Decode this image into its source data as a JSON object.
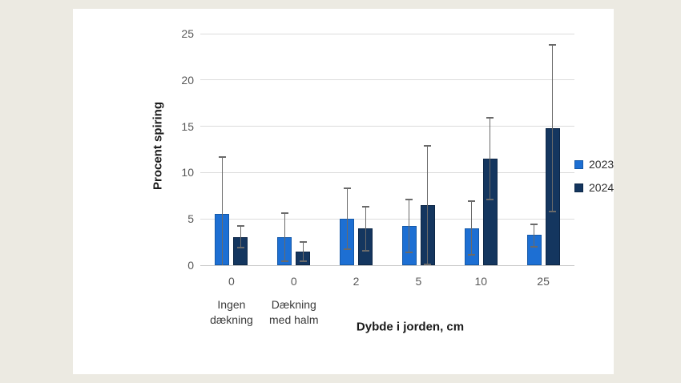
{
  "chart_data": {
    "type": "bar",
    "title": "",
    "xlabel": "Dybde i jorden, cm",
    "ylabel": "Procent spiring",
    "categories": [
      "0",
      "0",
      "2",
      "5",
      "10",
      "25"
    ],
    "category_notes": [
      {
        "index": 0,
        "lines": [
          "Ingen",
          "dækning"
        ]
      },
      {
        "index": 1,
        "lines": [
          "Dækning",
          "med halm"
        ]
      }
    ],
    "series": [
      {
        "name": "2023",
        "color": "#1D6FD3",
        "border_color": "#1559A8",
        "values": [
          5.5,
          3.0,
          5.0,
          4.2,
          4.0,
          3.3
        ],
        "err_hi": [
          11.7,
          5.6,
          8.3,
          7.1,
          6.9,
          4.4
        ],
        "err_lo": [
          0,
          0.4,
          1.7,
          1.4,
          1.1,
          2.0
        ]
      },
      {
        "name": "2024",
        "color": "#14365F",
        "border_color": "#0D2747",
        "values": [
          3.0,
          1.5,
          4.0,
          6.5,
          11.5,
          14.8
        ],
        "err_hi": [
          4.2,
          2.5,
          6.3,
          12.9,
          15.9,
          23.8
        ],
        "err_lo": [
          1.9,
          0.4,
          1.6,
          0.1,
          7.1,
          5.8
        ]
      }
    ],
    "ylim": [
      0,
      25
    ],
    "y_ticks": [
      0,
      5,
      10,
      15,
      20,
      25
    ],
    "grid": true,
    "legend_position": "right",
    "colors": {
      "background": "#ECEAE2",
      "panel": "#FFFFFF",
      "gridline": "#DCDCDC",
      "axis_line": "#C9C9C9",
      "tick_text": "#595959",
      "error_bar": "#6A6A6A"
    }
  }
}
